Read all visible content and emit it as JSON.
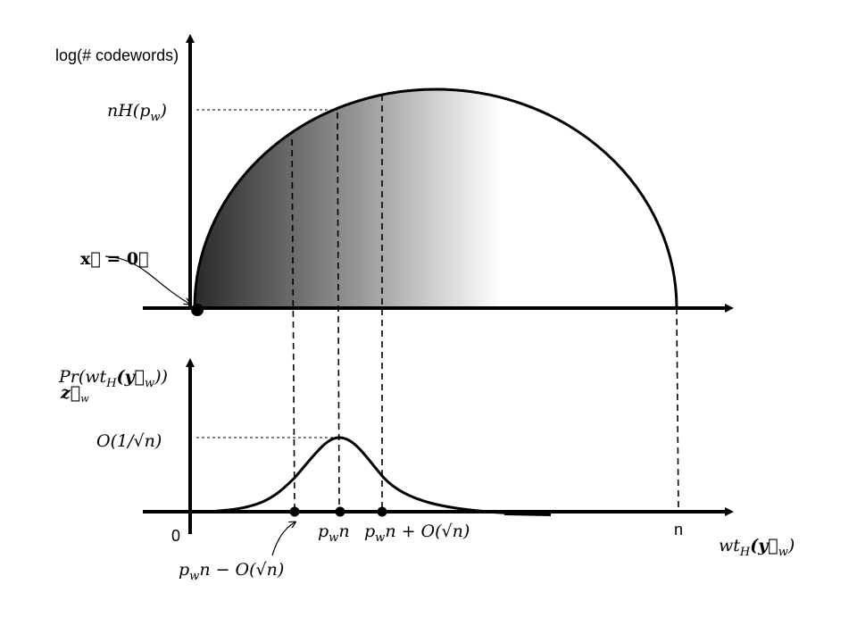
{
  "labels": {
    "log_axis": "log(# codewords)",
    "nH": [
      "nH(p",
      "w",
      ")"
    ],
    "x0": "x⃗ = 0⃗",
    "pr": [
      "Pr(wt",
      "H",
      "(y⃗",
      "w",
      "))"
    ],
    "pr_under": [
      "z⃗",
      "w"
    ],
    "peak": "O(1/√n)",
    "zero": "0",
    "n": "n",
    "pwn": [
      "p",
      "w",
      "n"
    ],
    "plus": [
      "p",
      "w",
      "n + O(√n)"
    ],
    "minus": [
      "p",
      "w",
      "n − O(√n)"
    ],
    "wt": [
      "wt",
      "H",
      "(y⃗",
      "w",
      ")"
    ]
  }
}
